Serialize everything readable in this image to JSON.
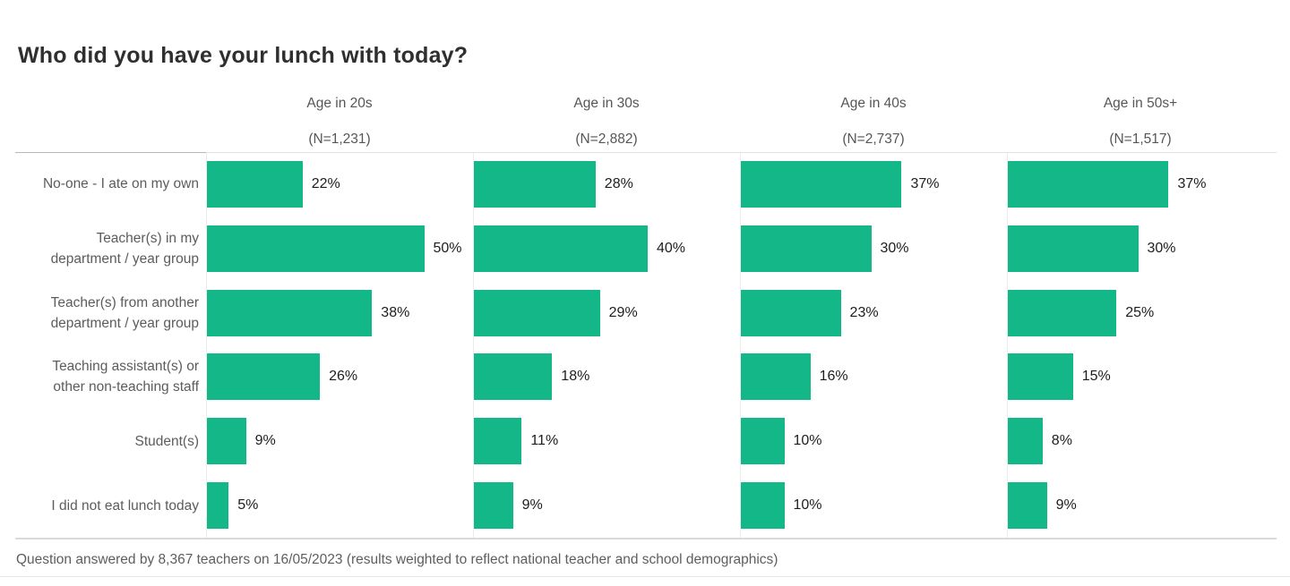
{
  "title": "Who did you have your lunch with today?",
  "footer": "Question answered by 8,367 teachers on 16/05/2023 (results weighted to reflect national teacher and school demographics)",
  "colors": {
    "bar": "#14b888",
    "title_text": "#2f2f2f",
    "label_text": "#5c5c5c",
    "value_text": "#1d1d1d"
  },
  "chart_data": {
    "type": "bar",
    "orientation": "horizontal",
    "title": "Who did you have your lunch with today?",
    "unit": "%",
    "grid": false,
    "legend": "none",
    "xlim": [
      0,
      61
    ],
    "categories": [
      "No-one - I ate on my own",
      "Teacher(s) in my department / year group",
      "Teacher(s) from another department / year group",
      "Teaching assistant(s) or other non-teaching staff",
      "Student(s)",
      "I did not eat lunch today"
    ],
    "category_lines": [
      [
        "No-one - I ate on my own"
      ],
      [
        "Teacher(s) in my",
        "department / year group"
      ],
      [
        "Teacher(s) from another",
        "department / year group"
      ],
      [
        "Teaching assistant(s) or",
        "other non-teaching staff"
      ],
      [
        "Student(s)"
      ],
      [
        "I did not eat lunch today"
      ]
    ],
    "series": [
      {
        "name": "Age in 20s",
        "n_label": "(N=1,231)",
        "values": [
          22,
          50,
          38,
          26,
          9,
          5
        ]
      },
      {
        "name": "Age in 30s",
        "n_label": "(N=2,882)",
        "values": [
          28,
          40,
          29,
          18,
          11,
          9
        ]
      },
      {
        "name": "Age in 40s",
        "n_label": "(N=2,737)",
        "values": [
          37,
          30,
          23,
          16,
          10,
          10
        ]
      },
      {
        "name": "Age in 50s+",
        "n_label": "(N=1,517)",
        "values": [
          37,
          30,
          25,
          15,
          8,
          9
        ]
      }
    ],
    "footnote": "Question answered by 8,367 teachers on 16/05/2023 (results weighted to reflect national teacher and school demographics)"
  }
}
